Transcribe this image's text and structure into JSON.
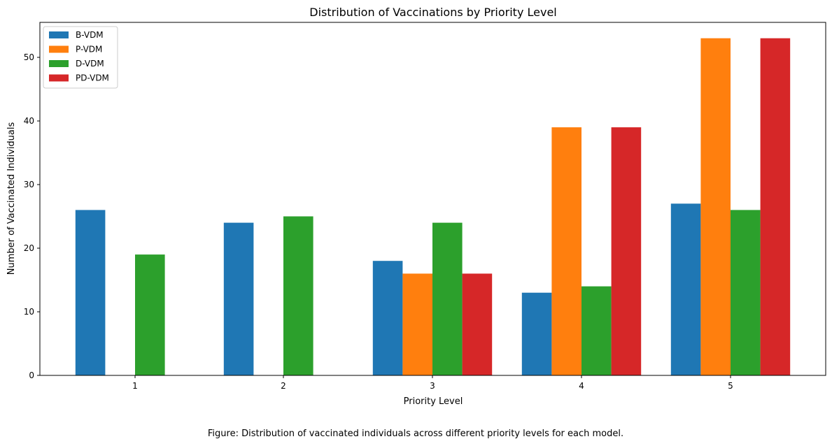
{
  "chart_data": {
    "type": "bar",
    "title": "Distribution of Vaccinations by Priority Level",
    "xlabel": "Priority Level",
    "ylabel": "Number of Vaccinated Individuals",
    "categories": [
      "1",
      "2",
      "3",
      "4",
      "5"
    ],
    "ylim": [
      0,
      55.5
    ],
    "yticks": [
      0,
      10,
      20,
      30,
      40,
      50
    ],
    "grid": false,
    "legend_position": "top-left",
    "series": [
      {
        "name": "B-VDM",
        "color": "#1f77b4",
        "values": [
          26,
          24,
          18,
          13,
          27
        ]
      },
      {
        "name": "P-VDM",
        "color": "#ff7f0e",
        "values": [
          0,
          0,
          16,
          39,
          53
        ]
      },
      {
        "name": "D-VDM",
        "color": "#2ca02c",
        "values": [
          19,
          25,
          24,
          14,
          26
        ]
      },
      {
        "name": "PD-VDM",
        "color": "#d62728",
        "values": [
          0,
          0,
          16,
          39,
          53
        ]
      }
    ]
  },
  "caption": "Figure: Distribution of vaccinated individuals across different priority levels for each model."
}
